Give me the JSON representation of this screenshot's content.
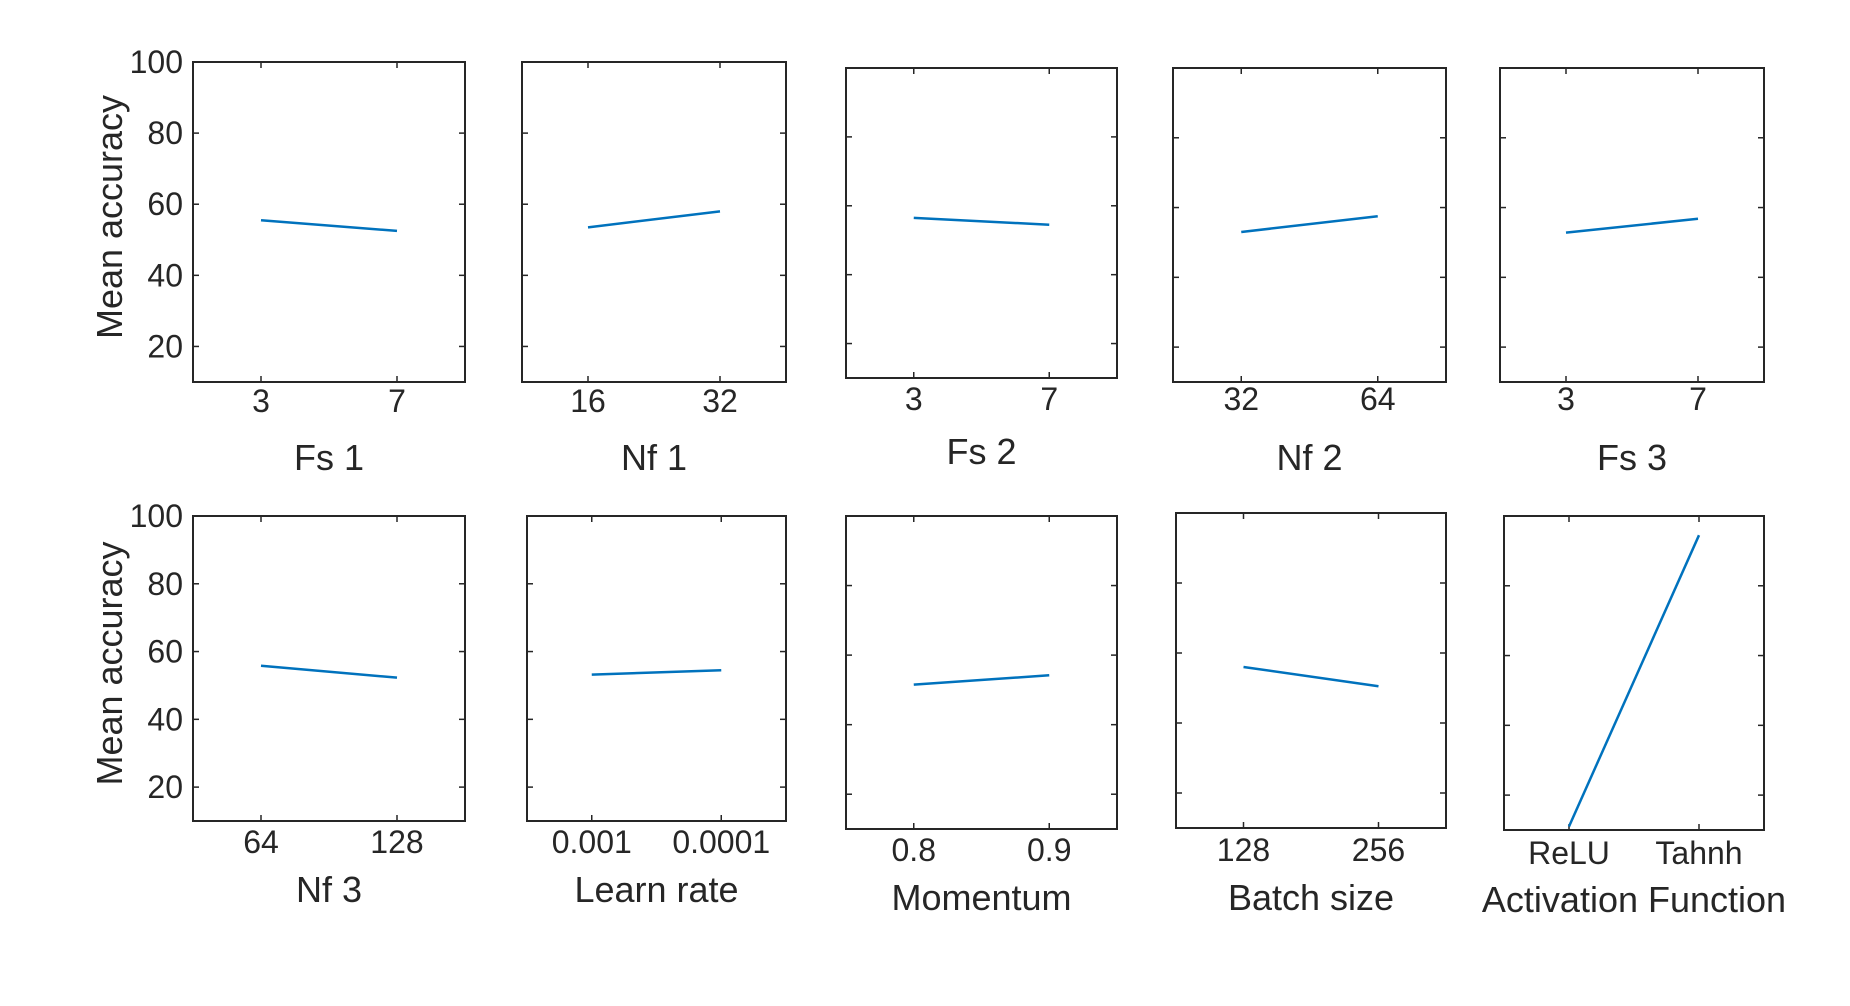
{
  "chart_data": [
    {
      "type": "line",
      "xlabel": "Fs 1",
      "ylabel": "Mean accuracy",
      "categories": [
        "3",
        "7"
      ],
      "values": [
        55.5,
        52.5
      ],
      "ylim": [
        10,
        100
      ],
      "yticks": [
        "20",
        "40",
        "60",
        "80",
        "100"
      ],
      "color": "#0072BD"
    },
    {
      "type": "line",
      "xlabel": "Nf 1",
      "ylabel": "",
      "categories": [
        "16",
        "32"
      ],
      "values": [
        53.5,
        58.0
      ],
      "ylim": [
        10,
        100
      ],
      "color": "#0072BD"
    },
    {
      "type": "line",
      "xlabel": "Fs 2",
      "ylabel": "",
      "categories": [
        "3",
        "7"
      ],
      "values": [
        56.5,
        54.5
      ],
      "ylim": [
        10,
        100
      ],
      "color": "#0072BD"
    },
    {
      "type": "line",
      "xlabel": "Nf 2",
      "ylabel": "",
      "categories": [
        "32",
        "64"
      ],
      "values": [
        53.0,
        57.5
      ],
      "ylim": [
        10,
        100
      ],
      "color": "#0072BD"
    },
    {
      "type": "line",
      "xlabel": "Fs 3",
      "ylabel": "",
      "categories": [
        "3",
        "7"
      ],
      "values": [
        52.8,
        56.8
      ],
      "ylim": [
        10,
        100
      ],
      "color": "#0072BD"
    },
    {
      "type": "line",
      "xlabel": "Nf 3",
      "ylabel": "Mean accuracy",
      "categories": [
        "64",
        "128"
      ],
      "values": [
        55.8,
        52.3
      ],
      "ylim": [
        10,
        100
      ],
      "yticks": [
        "20",
        "40",
        "60",
        "80",
        "100"
      ],
      "color": "#0072BD"
    },
    {
      "type": "line",
      "xlabel": "Learn rate",
      "ylabel": "",
      "categories": [
        "0.001",
        "0.0001"
      ],
      "values": [
        53.2,
        54.5
      ],
      "ylim": [
        10,
        100
      ],
      "color": "#0072BD"
    },
    {
      "type": "line",
      "xlabel": "Momentum",
      "ylabel": "",
      "categories": [
        "0.8",
        "0.9"
      ],
      "values": [
        51.5,
        54.2
      ],
      "ylim": [
        10,
        100
      ],
      "color": "#0072BD"
    },
    {
      "type": "line",
      "xlabel": "Batch size",
      "ylabel": "",
      "categories": [
        "128",
        "256"
      ],
      "values": [
        56.0,
        50.5
      ],
      "ylim": [
        10,
        100
      ],
      "color": "#0072BD"
    },
    {
      "type": "line",
      "xlabel": "Activation Function",
      "ylabel": "",
      "categories": [
        "ReLU",
        "Tahnh"
      ],
      "values": [
        11.0,
        94.5
      ],
      "ylim": [
        10,
        100
      ],
      "color": "#0072BD"
    }
  ]
}
